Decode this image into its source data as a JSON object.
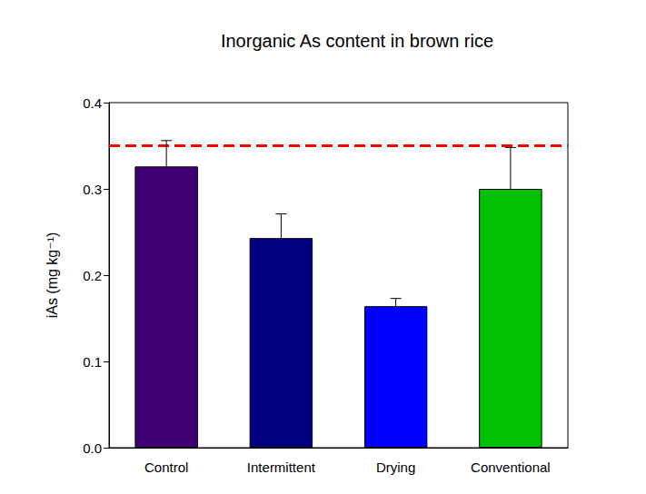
{
  "chart_data": {
    "type": "bar",
    "title": "Inorganic As content in brown rice",
    "y_label": "iAs (mg kg⁻¹)",
    "categories": [
      "Control",
      "Intermittent",
      "Drying",
      "Conventional"
    ],
    "values": [
      0.326,
      0.243,
      0.164,
      0.3
    ],
    "error_bars": [
      0.03,
      0.028,
      0.009,
      0.048
    ],
    "colors": [
      "#400074",
      "#000080",
      "#0000ff",
      "#00c000"
    ],
    "reference_line": {
      "value": 0.35,
      "color": "#ff0000",
      "line_style": "dashed"
    },
    "ylim": [
      0,
      0.4
    ],
    "yticks": [
      {
        "value": 0,
        "label": "0.0"
      },
      0.1,
      0.2,
      0.3,
      0.4
    ],
    "grid": false
  }
}
